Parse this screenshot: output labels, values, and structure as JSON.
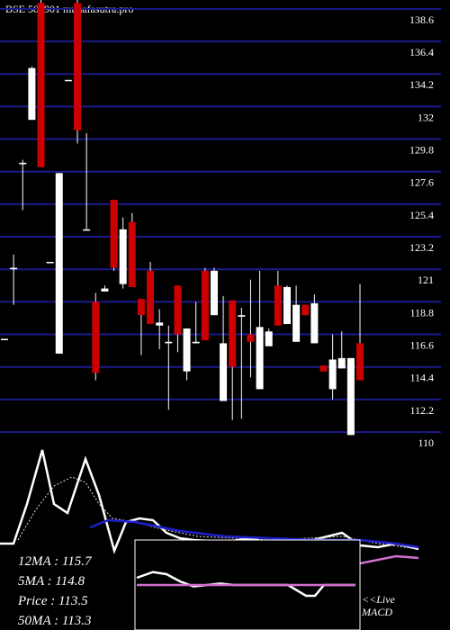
{
  "chart_data": [
    {
      "type": "candlestick",
      "title": "BSE 502901 munafasutra.pro",
      "up_color": "#ffffff",
      "down_color": "#cc0000",
      "grid": true,
      "grid_color": "#1a1a8c",
      "ylim": [
        109.7,
        139.2
      ],
      "yticks": [
        110,
        112.2,
        114.4,
        116.6,
        118.8,
        121,
        123.2,
        125.4,
        127.6,
        129.8,
        132,
        134.2,
        136.4,
        138.6
      ],
      "open": [
        116.3,
        121.0,
        128.1,
        131.1,
        139.0,
        121.5,
        115.3,
        133.8,
        139.0,
        123.7,
        118.8,
        119.5,
        125.7,
        120.0,
        124.2,
        119.0,
        120.9,
        117.2,
        116.0,
        119.9,
        114.1,
        116.0,
        120.9,
        117.9,
        112.1,
        118.9,
        117.8,
        116.6,
        112.9,
        115.8,
        119.9,
        117.3,
        116.1,
        118.6,
        116.0,
        114.5,
        112.9,
        114.3,
        109.8,
        116.0
      ],
      "high": [
        116.3,
        122.0,
        128.4,
        134.7,
        139.2,
        121.5,
        127.5,
        133.8,
        139.2,
        130.2,
        119.4,
        119.9,
        125.7,
        124.5,
        124.8,
        119.0,
        121.5,
        118.3,
        117.2,
        119.9,
        117.0,
        118.8,
        121.1,
        121.1,
        119.2,
        118.9,
        118.4,
        120.3,
        120.9,
        117.0,
        120.9,
        119.9,
        119.9,
        118.6,
        119.3,
        114.5,
        116.6,
        116.8,
        115.0,
        120.0
      ],
      "low": [
        116.3,
        118.6,
        125.0,
        131.1,
        127.9,
        121.5,
        115.3,
        133.8,
        129.5,
        123.6,
        113.5,
        119.5,
        120.9,
        119.7,
        119.8,
        115.2,
        117.3,
        115.6,
        111.5,
        115.4,
        113.5,
        116.0,
        116.2,
        117.9,
        112.1,
        110.8,
        110.9,
        113.7,
        112.9,
        115.8,
        117.2,
        117.3,
        116.1,
        117.9,
        116.0,
        114.1,
        112.2,
        114.3,
        109.8,
        113.5
      ],
      "close": [
        116.3,
        121.1,
        128.2,
        134.6,
        127.9,
        121.5,
        127.5,
        133.8,
        130.4,
        123.7,
        114.0,
        119.7,
        121.1,
        123.7,
        119.8,
        117.9,
        117.3,
        117.4,
        116.1,
        116.6,
        117.0,
        116.1,
        116.2,
        120.9,
        116.0,
        114.4,
        117.9,
        116.1,
        117.1,
        116.8,
        117.2,
        119.8,
        118.6,
        117.9,
        118.7,
        114.1,
        114.9,
        115.0,
        115.0,
        113.5
      ]
    },
    {
      "type": "line",
      "ylim": [
        0,
        100
      ],
      "labels": [
        "12MA : 115.7",
        "5MA : 114.8",
        "Price  : 113.5",
        "50MA : 113.3"
      ],
      "series": [
        {
          "color": "#ffffff",
          "dash": false,
          "x": [
            0,
            15,
            30,
            47,
            60,
            75,
            95,
            110,
            127,
            140,
            155,
            170,
            185,
            200,
            215,
            250,
            280,
            300,
            340,
            380,
            400,
            420,
            440,
            465
          ],
          "values": [
            48,
            48,
            70,
            100,
            70,
            65,
            95,
            75,
            44,
            60,
            62,
            61,
            54,
            51,
            50,
            49,
            51,
            48,
            49,
            54,
            47,
            46,
            48,
            45
          ]
        },
        {
          "color": "#dddddd",
          "dash": true,
          "x": [
            20,
            40,
            60,
            80,
            95,
            110,
            125,
            150,
            180,
            220,
            260,
            300,
            340,
            380,
            420,
            465
          ],
          "values": [
            50,
            67,
            80,
            85,
            82,
            70,
            62,
            60,
            56,
            52,
            51,
            50,
            51,
            52,
            48,
            45
          ]
        },
        {
          "color": "#1f1fd0",
          "dash": false,
          "x": [
            100,
            120,
            150,
            200,
            250,
            300,
            350,
            400,
            440,
            465
          ],
          "values": [
            57,
            61,
            60,
            55,
            52,
            51,
            50,
            50,
            48,
            46
          ]
        },
        {
          "color": "#d070d0",
          "dash": false,
          "x": [
            400,
            440,
            465
          ],
          "values": [
            37,
            41,
            40
          ]
        }
      ]
    },
    {
      "type": "line",
      "title": "MACD",
      "annotation": "<<Live",
      "ylim": [
        0,
        100
      ],
      "series": [
        {
          "color": "#ffffff",
          "x": [
            152,
            170,
            185,
            200,
            215,
            230,
            245,
            260,
            280,
            300,
            320,
            340,
            350,
            360,
            375,
            395
          ],
          "values": [
            60,
            68,
            65,
            55,
            48,
            50,
            52,
            50,
            50,
            50,
            50,
            35,
            35,
            50,
            50,
            50
          ]
        },
        {
          "color": "#d070d0",
          "x": [
            152,
            395
          ],
          "values": [
            50,
            50
          ]
        }
      ]
    }
  ]
}
